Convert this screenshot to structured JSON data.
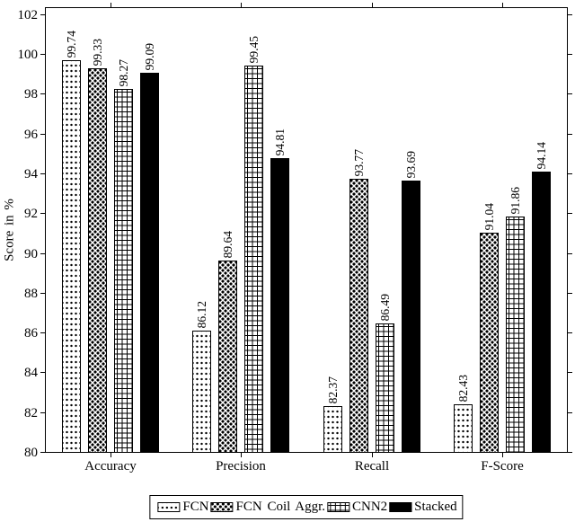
{
  "figure": {
    "background": "#ffffff",
    "foreground": "#000000"
  },
  "chart_data": {
    "type": "bar",
    "ylabel": "Score in %",
    "xlabel": "",
    "ylim": [
      80,
      102
    ],
    "ytick_step": 2,
    "grid": false,
    "legend_position": "below-center",
    "value_labels": "rotated-90-above-bars",
    "categories": [
      "Accuracy",
      "Precision",
      "Recall",
      "F-Score"
    ],
    "series": [
      {
        "name": "FCN",
        "pattern": "dots",
        "values": [
          99.74,
          86.12,
          82.37,
          82.43
        ]
      },
      {
        "name": "FCN Coil Aggr.",
        "pattern": "crosshatch-dots",
        "values": [
          99.33,
          89.64,
          93.77,
          91.04
        ]
      },
      {
        "name": "CNN2",
        "pattern": "grid",
        "values": [
          98.27,
          99.45,
          86.49,
          91.86
        ]
      },
      {
        "name": "Stacked",
        "pattern": "solid",
        "values": [
          99.09,
          94.81,
          93.69,
          94.14
        ]
      }
    ]
  }
}
